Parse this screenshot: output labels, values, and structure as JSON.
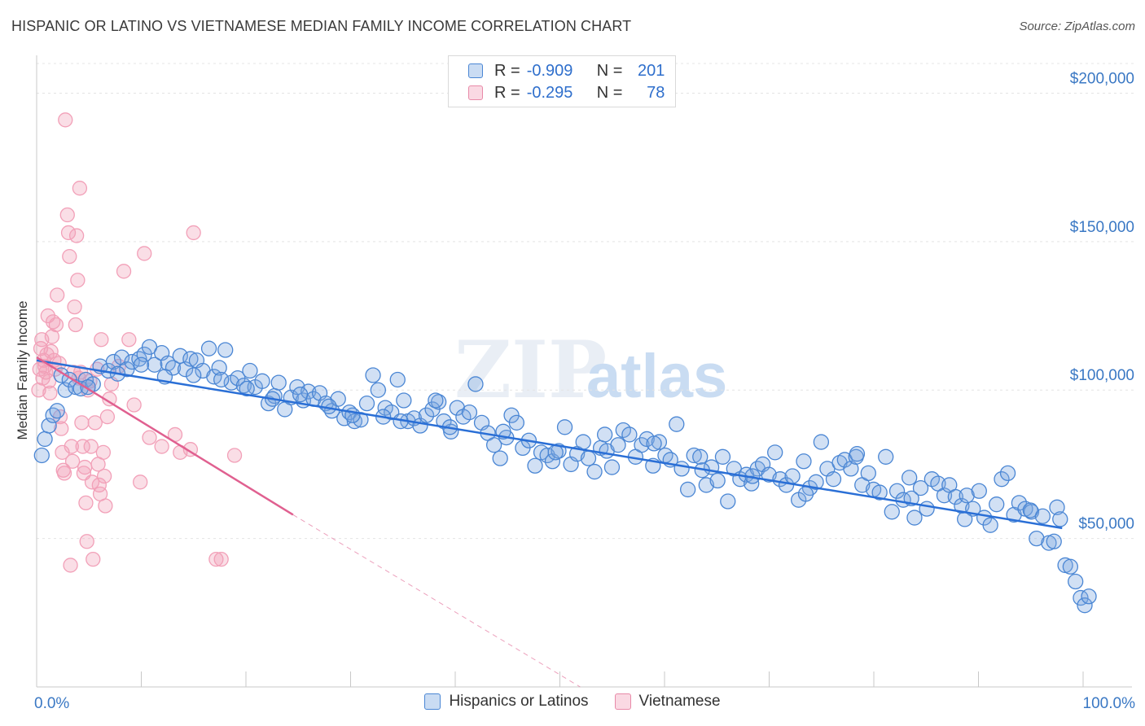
{
  "title": "HISPANIC OR LATINO VS VIETNAMESE MEDIAN FAMILY INCOME CORRELATION CHART",
  "source": "Source: ZipAtlas.com",
  "watermark": {
    "zip": "ZIP",
    "atlas": "atlas"
  },
  "legend": {
    "rows": [
      {
        "r_label": "R =",
        "r_value": "-0.909",
        "n_label": "N =",
        "n_value": "201",
        "color": "#7aa7e0"
      },
      {
        "r_label": "R =",
        "r_value": "-0.295",
        "n_label": "N =",
        "n_value": "78",
        "color": "#f2a0b8"
      }
    ]
  },
  "bottom_legend": [
    "Hispanics or Latinos",
    "Vietnamese"
  ],
  "chart_data": {
    "type": "scatter",
    "title": "HISPANIC OR LATINO VS VIETNAMESE MEDIAN FAMILY INCOME CORRELATION CHART",
    "xlabel": "",
    "ylabel": "Median Family Income",
    "xlim": [
      0,
      100
    ],
    "ylim": [
      0,
      210000
    ],
    "x_tick_labels": [
      "0.0%",
      "100.0%"
    ],
    "y_ticks": [
      50000,
      100000,
      150000,
      200000
    ],
    "y_tick_labels": [
      "$50,000",
      "$100,000",
      "$150,000",
      "$200,000"
    ],
    "grid": true,
    "legend_position": "top-center",
    "series": [
      {
        "name": "Hispanics or Latinos",
        "color": "#7aa7e0",
        "line_color": "#2a6fd6",
        "trend": {
          "x": [
            0,
            100
          ],
          "y": [
            110000,
            53500
          ]
        },
        "points": [
          [
            0.5,
            78000
          ],
          [
            0.8,
            83500
          ],
          [
            1.2,
            88000
          ],
          [
            1.6,
            91500
          ],
          [
            2.0,
            93000
          ],
          [
            2.4,
            105000
          ],
          [
            2.8,
            100000
          ],
          [
            3.2,
            103500
          ],
          [
            3.8,
            101000
          ],
          [
            4.3,
            100500
          ],
          [
            4.8,
            103500
          ],
          [
            5.5,
            102000
          ],
          [
            6.2,
            108000
          ],
          [
            7.0,
            106500
          ],
          [
            7.5,
            109500
          ],
          [
            8.3,
            111000
          ],
          [
            8.8,
            107000
          ],
          [
            9.3,
            109500
          ],
          [
            10.0,
            110500
          ],
          [
            10.5,
            112000
          ],
          [
            11.0,
            114500
          ],
          [
            11.5,
            108500
          ],
          [
            12.2,
            112500
          ],
          [
            12.8,
            109000
          ],
          [
            13.3,
            107500
          ],
          [
            14.0,
            111500
          ],
          [
            14.5,
            107000
          ],
          [
            15.0,
            110500
          ],
          [
            15.6,
            110000
          ],
          [
            16.2,
            106500
          ],
          [
            16.8,
            114000
          ],
          [
            17.3,
            104500
          ],
          [
            17.8,
            107500
          ],
          [
            18.4,
            113500
          ],
          [
            19.0,
            102500
          ],
          [
            19.6,
            104000
          ],
          [
            20.2,
            101500
          ],
          [
            20.8,
            106500
          ],
          [
            21.3,
            101000
          ],
          [
            22.0,
            103000
          ],
          [
            22.6,
            95500
          ],
          [
            23.2,
            98000
          ],
          [
            23.6,
            102500
          ],
          [
            24.2,
            93500
          ],
          [
            24.8,
            97500
          ],
          [
            25.4,
            101000
          ],
          [
            26.0,
            96500
          ],
          [
            26.5,
            99500
          ],
          [
            27.0,
            97000
          ],
          [
            27.6,
            99000
          ],
          [
            28.2,
            95500
          ],
          [
            28.8,
            93000
          ],
          [
            29.4,
            97000
          ],
          [
            30.0,
            90500
          ],
          [
            30.5,
            92500
          ],
          [
            31.0,
            89500
          ],
          [
            31.6,
            90000
          ],
          [
            32.2,
            95500
          ],
          [
            32.8,
            105000
          ],
          [
            33.3,
            100000
          ],
          [
            34.0,
            94000
          ],
          [
            34.6,
            92500
          ],
          [
            35.2,
            103500
          ],
          [
            35.8,
            96500
          ],
          [
            36.2,
            89500
          ],
          [
            36.8,
            90500
          ],
          [
            37.4,
            88000
          ],
          [
            38.0,
            91500
          ],
          [
            38.6,
            93500
          ],
          [
            39.2,
            96000
          ],
          [
            39.7,
            89500
          ],
          [
            40.4,
            86000
          ],
          [
            41.0,
            94000
          ],
          [
            41.6,
            91000
          ],
          [
            42.2,
            92500
          ],
          [
            42.8,
            102000
          ],
          [
            43.4,
            89000
          ],
          [
            44.0,
            85500
          ],
          [
            44.6,
            81500
          ],
          [
            45.2,
            77000
          ],
          [
            45.8,
            84000
          ],
          [
            46.3,
            91500
          ],
          [
            46.8,
            89000
          ],
          [
            47.4,
            80500
          ],
          [
            48.0,
            83000
          ],
          [
            48.6,
            74500
          ],
          [
            49.2,
            79000
          ],
          [
            49.8,
            78000
          ],
          [
            50.3,
            76000
          ],
          [
            50.9,
            79500
          ],
          [
            51.5,
            87500
          ],
          [
            52.1,
            75000
          ],
          [
            52.7,
            78500
          ],
          [
            53.3,
            82500
          ],
          [
            53.8,
            77000
          ],
          [
            54.4,
            72500
          ],
          [
            55.0,
            80500
          ],
          [
            55.6,
            79500
          ],
          [
            56.1,
            74000
          ],
          [
            56.7,
            81500
          ],
          [
            57.2,
            86500
          ],
          [
            57.8,
            85000
          ],
          [
            58.4,
            77500
          ],
          [
            59.0,
            81500
          ],
          [
            59.5,
            83500
          ],
          [
            60.1,
            74500
          ],
          [
            60.7,
            82500
          ],
          [
            61.3,
            78000
          ],
          [
            61.8,
            76500
          ],
          [
            62.4,
            88500
          ],
          [
            62.9,
            73500
          ],
          [
            63.5,
            66500
          ],
          [
            64.1,
            78000
          ],
          [
            64.7,
            77500
          ],
          [
            65.3,
            68000
          ],
          [
            65.8,
            74000
          ],
          [
            66.4,
            69500
          ],
          [
            66.9,
            77500
          ],
          [
            67.4,
            62500
          ],
          [
            68.0,
            73500
          ],
          [
            68.6,
            70000
          ],
          [
            69.2,
            71500
          ],
          [
            69.7,
            68500
          ],
          [
            70.3,
            73500
          ],
          [
            70.8,
            75000
          ],
          [
            71.4,
            71500
          ],
          [
            72.0,
            79000
          ],
          [
            72.5,
            70000
          ],
          [
            73.1,
            68000
          ],
          [
            73.7,
            71000
          ],
          [
            74.3,
            63000
          ],
          [
            74.8,
            76000
          ],
          [
            75.4,
            67000
          ],
          [
            76.0,
            69000
          ],
          [
            76.5,
            82500
          ],
          [
            77.1,
            73500
          ],
          [
            77.7,
            70000
          ],
          [
            78.3,
            75500
          ],
          [
            78.8,
            76500
          ],
          [
            79.4,
            73500
          ],
          [
            79.9,
            77500
          ],
          [
            80.5,
            68000
          ],
          [
            81.1,
            72000
          ],
          [
            81.6,
            66500
          ],
          [
            82.2,
            65500
          ],
          [
            82.8,
            77500
          ],
          [
            83.4,
            59000
          ],
          [
            83.9,
            66000
          ],
          [
            84.5,
            63000
          ],
          [
            85.1,
            70500
          ],
          [
            85.6,
            57000
          ],
          [
            86.2,
            67000
          ],
          [
            86.8,
            60000
          ],
          [
            87.3,
            70000
          ],
          [
            87.9,
            68500
          ],
          [
            88.5,
            64500
          ],
          [
            89.0,
            68000
          ],
          [
            89.6,
            64000
          ],
          [
            90.2,
            61000
          ],
          [
            90.7,
            64500
          ],
          [
            91.3,
            60000
          ],
          [
            91.9,
            66000
          ],
          [
            92.4,
            57000
          ],
          [
            93.0,
            54500
          ],
          [
            93.6,
            61500
          ],
          [
            94.1,
            70000
          ],
          [
            94.7,
            72000
          ],
          [
            95.3,
            58000
          ],
          [
            95.8,
            62000
          ],
          [
            96.4,
            60000
          ],
          [
            97.0,
            59000
          ],
          [
            97.5,
            50000
          ],
          [
            98.1,
            57500
          ],
          [
            98.7,
            48500
          ],
          [
            99.2,
            49000
          ],
          [
            99.5,
            60500
          ],
          [
            99.8,
            56500
          ],
          [
            100.3,
            41000
          ],
          [
            100.8,
            40500
          ],
          [
            101.3,
            35500
          ],
          [
            101.8,
            30000
          ],
          [
            102.2,
            27500
          ],
          [
            102.6,
            30500
          ],
          [
            96.9,
            59500
          ],
          [
            90.5,
            56500
          ],
          [
            85.3,
            63500
          ],
          [
            80.0,
            78500
          ],
          [
            75.0,
            65000
          ],
          [
            69.8,
            71000
          ],
          [
            64.9,
            73000
          ],
          [
            60.2,
            82000
          ],
          [
            55.4,
            85000
          ],
          [
            50.6,
            79000
          ],
          [
            45.5,
            86000
          ],
          [
            40.3,
            87500
          ],
          [
            35.5,
            89500
          ],
          [
            30.8,
            91500
          ],
          [
            25.7,
            98500
          ],
          [
            20.5,
            100500
          ],
          [
            15.3,
            105000
          ],
          [
            10.2,
            108500
          ],
          [
            5.0,
            101000
          ],
          [
            7.9,
            105500
          ],
          [
            12.5,
            104500
          ],
          [
            18.0,
            103500
          ],
          [
            23.0,
            97000
          ],
          [
            28.5,
            94500
          ],
          [
            33.8,
            91000
          ],
          [
            38.9,
            96500
          ]
        ]
      },
      {
        "name": "Vietnamese",
        "color": "#f2a0b8",
        "line_color": "#e06090",
        "trend": {
          "x": [
            0,
            25
          ],
          "y": [
            111000,
            58000
          ]
        },
        "trend_dashed": {
          "x": [
            25,
            53
          ],
          "y": [
            58000,
            0
          ]
        },
        "points": [
          [
            0.2,
            100000
          ],
          [
            0.3,
            107000
          ],
          [
            0.4,
            114000
          ],
          [
            0.5,
            117000
          ],
          [
            0.6,
            104000
          ],
          [
            0.7,
            110000
          ],
          [
            0.8,
            108000
          ],
          [
            0.9,
            106000
          ],
          [
            1.0,
            112000
          ],
          [
            1.1,
            125000
          ],
          [
            1.2,
            103000
          ],
          [
            1.3,
            99000
          ],
          [
            1.4,
            113000
          ],
          [
            1.5,
            118000
          ],
          [
            1.6,
            123000
          ],
          [
            1.7,
            110000
          ],
          [
            1.8,
            107000
          ],
          [
            1.9,
            122000
          ],
          [
            2.0,
            132000
          ],
          [
            2.2,
            109000
          ],
          [
            2.3,
            91000
          ],
          [
            2.4,
            87000
          ],
          [
            2.5,
            79000
          ],
          [
            2.6,
            73000
          ],
          [
            2.7,
            72000
          ],
          [
            2.8,
            191000
          ],
          [
            3.0,
            159000
          ],
          [
            3.1,
            153000
          ],
          [
            3.2,
            145000
          ],
          [
            3.3,
            41000
          ],
          [
            3.4,
            81000
          ],
          [
            3.5,
            76000
          ],
          [
            3.6,
            106000
          ],
          [
            3.7,
            128000
          ],
          [
            3.8,
            122000
          ],
          [
            3.9,
            152000
          ],
          [
            4.0,
            137000
          ],
          [
            4.1,
            104000
          ],
          [
            4.2,
            168000
          ],
          [
            4.3,
            106000
          ],
          [
            4.4,
            89000
          ],
          [
            4.5,
            81000
          ],
          [
            4.6,
            72000
          ],
          [
            4.7,
            74000
          ],
          [
            4.8,
            62000
          ],
          [
            4.9,
            49000
          ],
          [
            5.0,
            100000
          ],
          [
            5.2,
            103000
          ],
          [
            5.3,
            81000
          ],
          [
            5.4,
            69000
          ],
          [
            5.5,
            43000
          ],
          [
            5.7,
            89000
          ],
          [
            5.9,
            107000
          ],
          [
            6.0,
            75000
          ],
          [
            6.1,
            68000
          ],
          [
            6.2,
            65000
          ],
          [
            6.3,
            117000
          ],
          [
            6.5,
            79000
          ],
          [
            6.6,
            71000
          ],
          [
            6.7,
            61000
          ],
          [
            6.9,
            91000
          ],
          [
            7.1,
            97000
          ],
          [
            7.3,
            102000
          ],
          [
            8.0,
            108000
          ],
          [
            8.5,
            140000
          ],
          [
            9.0,
            117000
          ],
          [
            9.5,
            95000
          ],
          [
            10.1,
            69000
          ],
          [
            10.5,
            146000
          ],
          [
            11.0,
            84000
          ],
          [
            12.2,
            81000
          ],
          [
            14.0,
            79000
          ],
          [
            15.3,
            153000
          ],
          [
            17.5,
            43000
          ],
          [
            18.0,
            43000
          ],
          [
            19.3,
            78000
          ],
          [
            13.5,
            85000
          ],
          [
            15.0,
            80000
          ]
        ]
      }
    ]
  }
}
